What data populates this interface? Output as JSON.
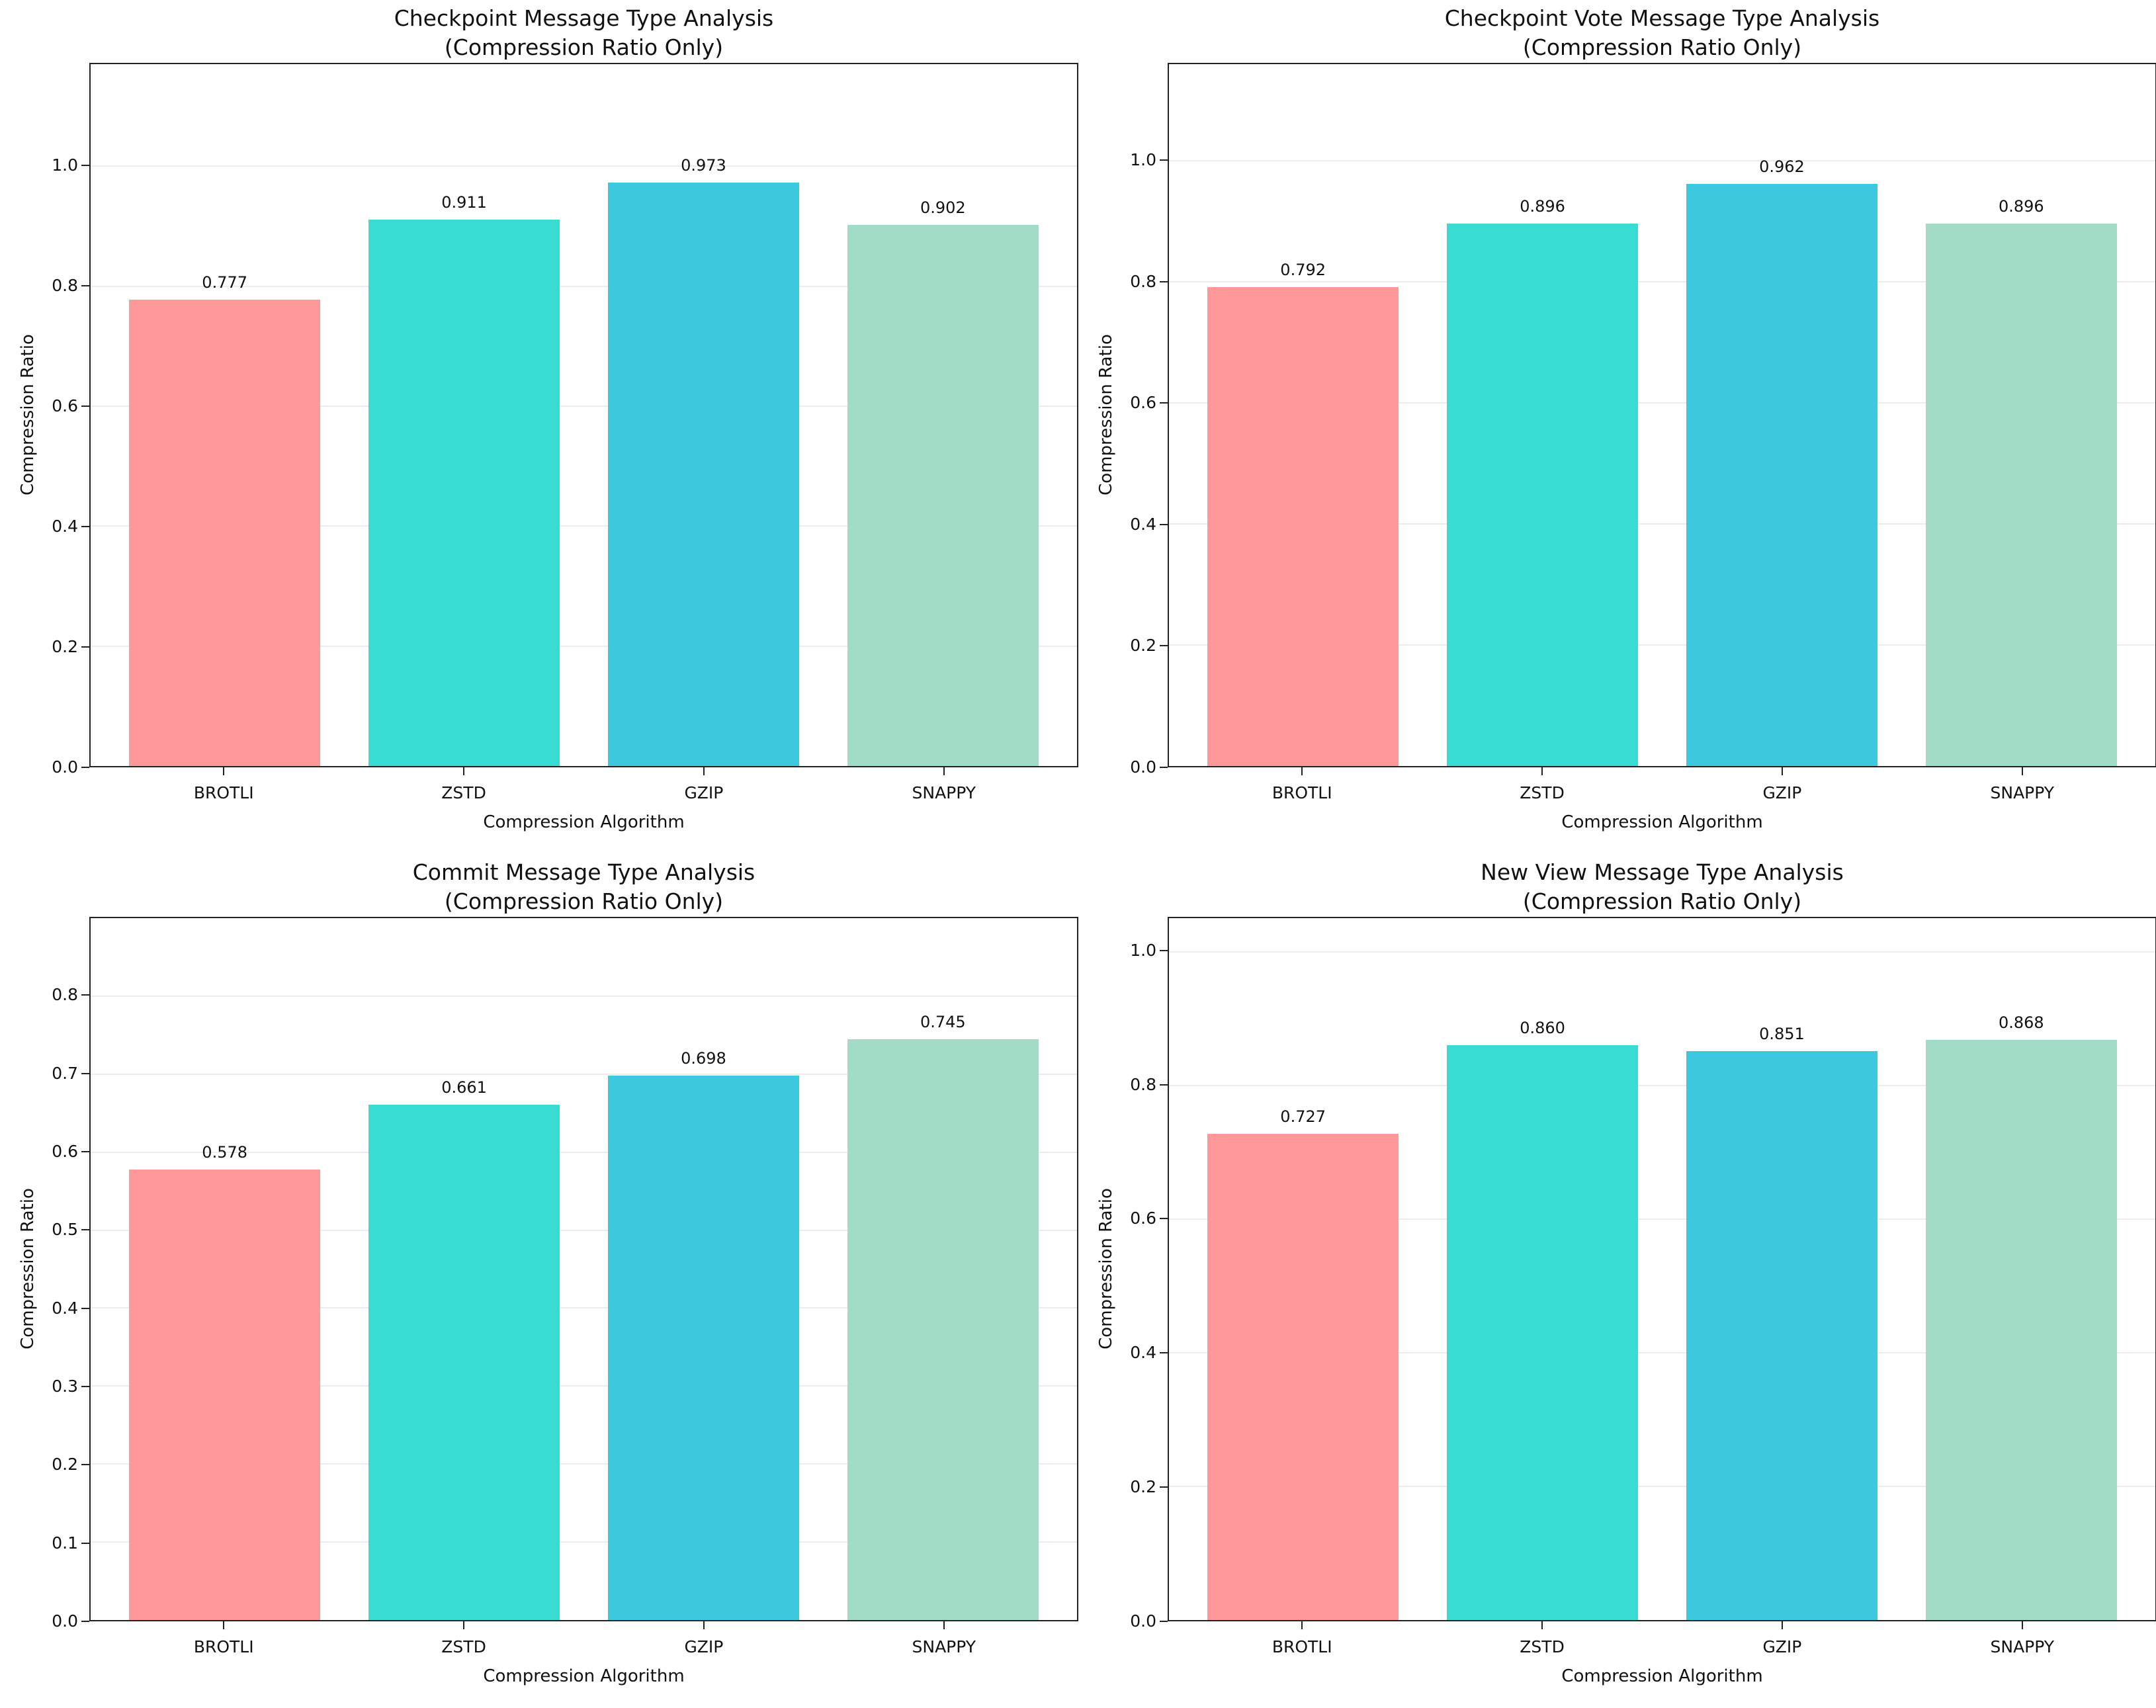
{
  "figure": {
    "background": "#ffffff",
    "text_color": "#111111",
    "spine_color": "#222222",
    "gridline_color": "#ececec"
  },
  "bar_colors": [
    "#FF9898",
    "#38DCD2",
    "#3CC8DE",
    "#A2DCC7"
  ],
  "chart_data": [
    {
      "type": "bar",
      "title": "Checkpoint Message Type Analysis",
      "subtitle": "(Compression Ratio Only)",
      "categories": [
        "BROTLI",
        "ZSTD",
        "GZIP",
        "SNAPPY"
      ],
      "values": [
        0.777,
        0.911,
        0.973,
        0.902
      ],
      "value_labels": [
        "0.777",
        "0.911",
        "0.973",
        "0.902"
      ],
      "xlabel": "Compression Algorithm",
      "ylabel": "Compression Ratio",
      "ylim": [
        0,
        1.17
      ],
      "yticks": [
        0.0,
        0.2,
        0.4,
        0.6,
        0.8,
        1.0
      ],
      "ytick_labels": [
        "0.0",
        "0.2",
        "0.4",
        "0.6",
        "0.8",
        "1.0"
      ],
      "grid": true,
      "legend": null
    },
    {
      "type": "bar",
      "title": "Checkpoint Vote Message Type Analysis",
      "subtitle": "(Compression Ratio Only)",
      "categories": [
        "BROTLI",
        "ZSTD",
        "GZIP",
        "SNAPPY"
      ],
      "values": [
        0.792,
        0.896,
        0.962,
        0.896
      ],
      "value_labels": [
        "0.792",
        "0.896",
        "0.962",
        "0.896"
      ],
      "xlabel": "Compression Algorithm",
      "ylabel": "Compression Ratio",
      "ylim": [
        0,
        1.16
      ],
      "yticks": [
        0.0,
        0.2,
        0.4,
        0.6,
        0.8,
        1.0
      ],
      "ytick_labels": [
        "0.0",
        "0.2",
        "0.4",
        "0.6",
        "0.8",
        "1.0"
      ],
      "grid": true,
      "legend": null
    },
    {
      "type": "bar",
      "title": "Commit Message Type Analysis",
      "subtitle": "(Compression Ratio Only)",
      "categories": [
        "BROTLI",
        "ZSTD",
        "GZIP",
        "SNAPPY"
      ],
      "values": [
        0.578,
        0.661,
        0.698,
        0.745
      ],
      "value_labels": [
        "0.578",
        "0.661",
        "0.698",
        "0.745"
      ],
      "xlabel": "Compression Algorithm",
      "ylabel": "Compression Ratio",
      "ylim": [
        0,
        0.9
      ],
      "yticks": [
        0.0,
        0.1,
        0.2,
        0.3,
        0.4,
        0.5,
        0.6,
        0.7,
        0.8
      ],
      "ytick_labels": [
        "0.0",
        "0.1",
        "0.2",
        "0.3",
        "0.4",
        "0.5",
        "0.6",
        "0.7",
        "0.8"
      ],
      "grid": true,
      "legend": null
    },
    {
      "type": "bar",
      "title": "New View Message Type Analysis",
      "subtitle": "(Compression Ratio Only)",
      "categories": [
        "BROTLI",
        "ZSTD",
        "GZIP",
        "SNAPPY"
      ],
      "values": [
        0.727,
        0.86,
        0.851,
        0.868
      ],
      "value_labels": [
        "0.727",
        "0.860",
        "0.851",
        "0.868"
      ],
      "xlabel": "Compression Algorithm",
      "ylabel": "Compression Ratio",
      "ylim": [
        0,
        1.05
      ],
      "yticks": [
        0.0,
        0.2,
        0.4,
        0.6,
        0.8,
        1.0
      ],
      "ytick_labels": [
        "0.0",
        "0.2",
        "0.4",
        "0.6",
        "0.8",
        "1.0"
      ],
      "grid": true,
      "legend": null
    }
  ]
}
